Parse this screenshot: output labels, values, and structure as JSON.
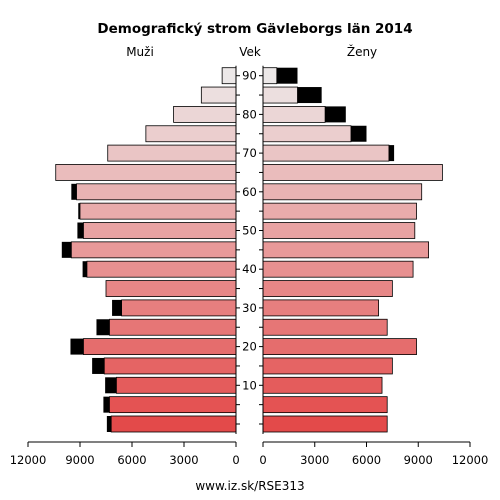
{
  "chart_data": {
    "type": "bar",
    "title": "Demografický strom Gävleborgs län 2014",
    "left_label": "Muži",
    "center_label": "Vek",
    "right_label": "Ženy",
    "footer": "www.iz.sk/RSE313",
    "x_ticks_left": [
      "12000",
      "9000",
      "6000",
      "3000",
      "0"
    ],
    "x_ticks_right": [
      "0",
      "3000",
      "6000",
      "9000",
      "12000"
    ],
    "xlim": [
      0,
      12000
    ],
    "age_tick_labels": [
      "10",
      "20",
      "30",
      "40",
      "50",
      "60",
      "70",
      "80",
      "90"
    ],
    "age_groups": [
      "0-4",
      "5-9",
      "10-14",
      "15-19",
      "20-24",
      "25-29",
      "30-34",
      "35-39",
      "40-44",
      "45-49",
      "50-54",
      "55-59",
      "60-64",
      "65-69",
      "70-74",
      "75-79",
      "80-84",
      "85-89",
      "90+"
    ],
    "series": [
      {
        "name": "Muži",
        "values": [
          7200,
          7300,
          6900,
          7600,
          8800,
          7300,
          6600,
          7500,
          8600,
          9500,
          8800,
          9000,
          9200,
          10400,
          7400,
          5200,
          3600,
          2000,
          800
        ],
        "excess": [
          250,
          350,
          650,
          700,
          750,
          750,
          550,
          0,
          250,
          550,
          350,
          100,
          300,
          0,
          0,
          0,
          0,
          0,
          0
        ]
      },
      {
        "name": "Ženy",
        "values": [
          7200,
          7200,
          6900,
          7500,
          8900,
          7200,
          6700,
          7500,
          8700,
          9600,
          8800,
          8900,
          9200,
          10400,
          7300,
          5100,
          3600,
          2000,
          800
        ],
        "excess": [
          0,
          0,
          0,
          0,
          0,
          0,
          0,
          0,
          0,
          0,
          0,
          0,
          0,
          0,
          300,
          900,
          1200,
          1400,
          1200
        ]
      }
    ],
    "colors": {
      "young": "#e34a4a",
      "old": "#ece8e8",
      "excess": "#000000",
      "border": "#000000"
    }
  }
}
